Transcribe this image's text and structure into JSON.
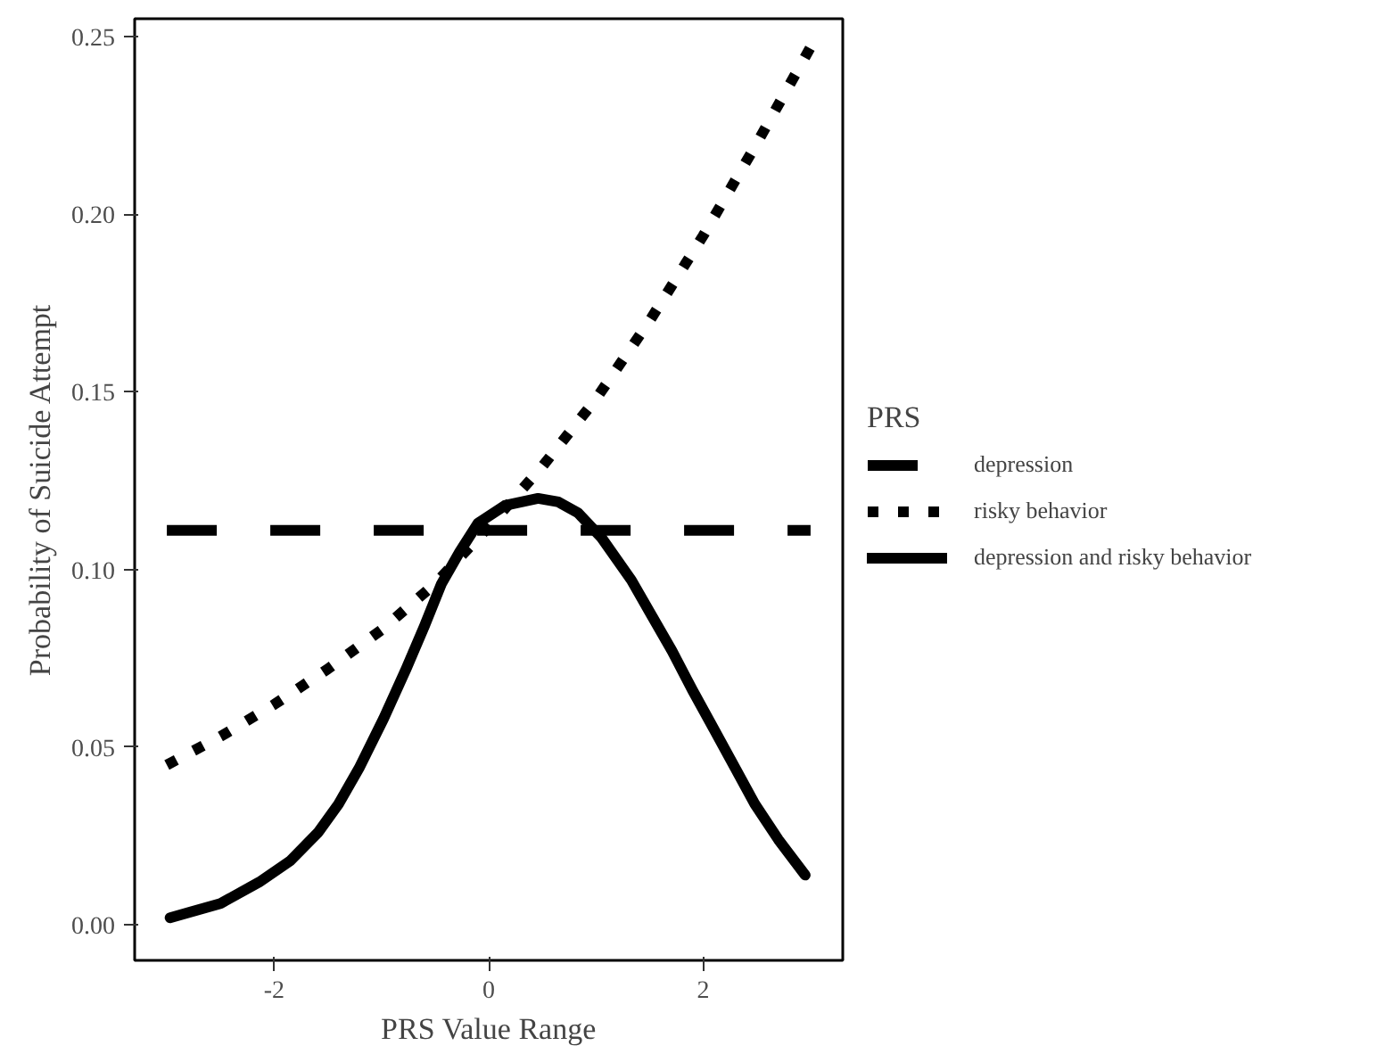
{
  "chart_data": {
    "type": "line",
    "xlabel": "PRS Value Range",
    "ylabel": "Probability of Suicide Attempt",
    "legend_title": "PRS",
    "legend": "right",
    "grid": false,
    "xlim": [
      -3.3,
      3.3
    ],
    "ylim": [
      -0.01,
      0.255
    ],
    "xticks": [
      {
        "value": -2,
        "label": "-2"
      },
      0,
      2
    ],
    "yticks": [
      {
        "value": 0,
        "label": "0.00"
      },
      0.05,
      {
        "value": 0.1,
        "label": "0.10"
      },
      0.15,
      {
        "value": 0.2,
        "label": "0.20"
      },
      0.25
    ],
    "series": [
      {
        "name": "depression",
        "color": "#000000",
        "line_style": "dashed",
        "x": [
          -3,
          3
        ],
        "values": [
          0.111,
          0.111
        ]
      },
      {
        "name": "risky behavior",
        "color": "#000000",
        "line_style": "dotted",
        "x": [
          -3,
          -2.5,
          -2,
          -1.5,
          -1,
          -0.5,
          0,
          0.5,
          1,
          1.5,
          2,
          2.5,
          3
        ],
        "values": [
          0.045,
          0.053,
          0.062,
          0.072,
          0.083,
          0.096,
          0.112,
          0.129,
          0.148,
          0.17,
          0.194,
          0.22,
          0.247
        ]
      },
      {
        "name": "depression and risky behavior",
        "color": "#000000",
        "line_style": "solid",
        "x": [
          -2.97,
          -2.5,
          -2.14,
          -1.85,
          -1.59,
          -1.4,
          -1.21,
          -0.98,
          -0.77,
          -0.6,
          -0.44,
          -0.27,
          -0.1,
          0.15,
          0.46,
          0.65,
          0.83,
          1.05,
          1.33,
          1.52,
          1.71,
          1.9,
          2.1,
          2.3,
          2.48,
          2.7,
          2.95
        ],
        "values": [
          0.002,
          0.006,
          0.012,
          0.018,
          0.026,
          0.034,
          0.044,
          0.058,
          0.072,
          0.084,
          0.096,
          0.105,
          0.113,
          0.118,
          0.12,
          0.119,
          0.116,
          0.109,
          0.097,
          0.087,
          0.077,
          0.066,
          0.055,
          0.044,
          0.034,
          0.024,
          0.014
        ]
      }
    ]
  }
}
